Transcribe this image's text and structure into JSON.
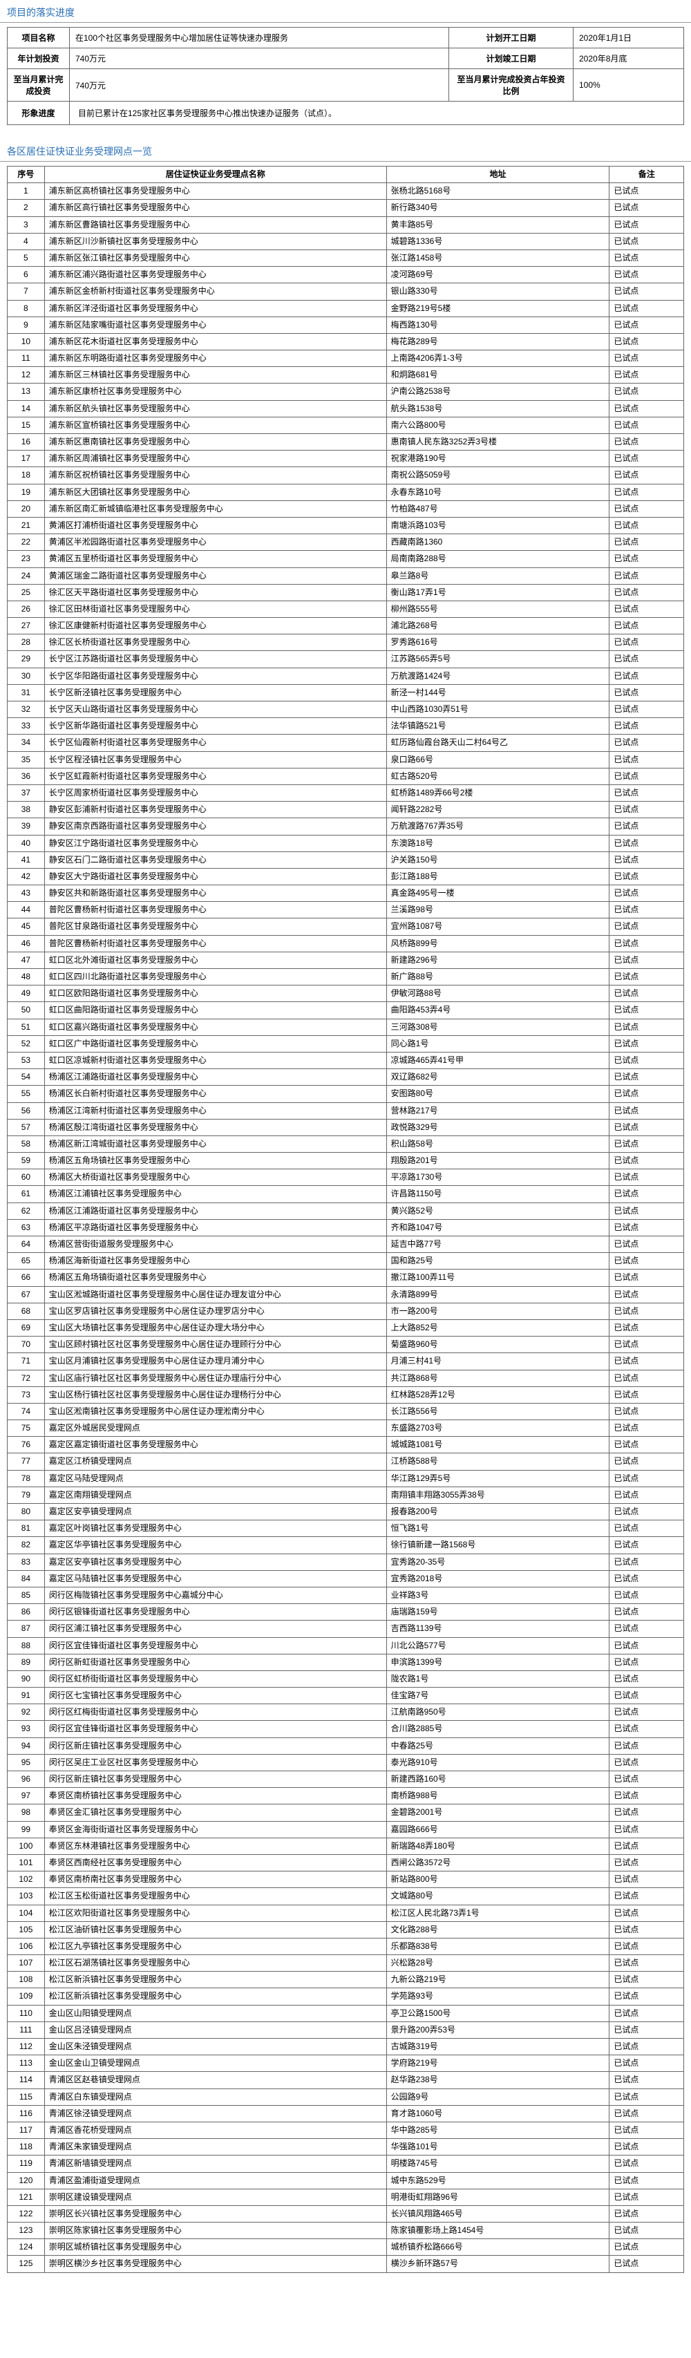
{
  "section1_title": "项目的落实进度",
  "info": {
    "row1_l1": "项目名称",
    "row1_v1": "在100个社区事务受理服务中心增加居住证等快速办理服务",
    "row1_l2": "计划开工日期",
    "row1_v2": "2020年1月1日",
    "row2_l1": "年计划投资",
    "row2_v1": "740万元",
    "row2_l2": "计划竣工日期",
    "row2_v2": "2020年8月底",
    "row3_l1": "至当月累计完成投资",
    "row3_v1": "740万元",
    "row3_l2": "至当月累计完成投资占年投资比例",
    "row3_v2": "100%",
    "row4_l1": "形象进度",
    "row4_v1": "目前已累计在125家社区事务受理服务中心推出快速办证服务（试点）。"
  },
  "section2_title": "各区居住证快证业务受理网点一览",
  "list_header": {
    "seq": "序号",
    "name": "居住证快证业务受理点名称",
    "addr": "地址",
    "rem": "备注"
  },
  "rows": [
    {
      "s": "1",
      "n": "浦东新区高桥镇社区事务受理服务中心",
      "a": "张杨北路5168号",
      "r": "已试点"
    },
    {
      "s": "2",
      "n": "浦东新区高行镇社区事务受理服务中心",
      "a": "新行路340号",
      "r": "已试点"
    },
    {
      "s": "3",
      "n": "浦东新区曹路镇社区事务受理服务中心",
      "a": "黄丰路85号",
      "r": "已试点"
    },
    {
      "s": "4",
      "n": "浦东新区川沙新镇社区事务受理服务中心",
      "a": "城碧路1336号",
      "r": "已试点"
    },
    {
      "s": "5",
      "n": "浦东新区张江镇社区事务受理服务中心",
      "a": "张江路1458号",
      "r": "已试点"
    },
    {
      "s": "6",
      "n": "浦东新区浦兴路街道社区事务受理服务中心",
      "a": "凌河路69号",
      "r": "已试点"
    },
    {
      "s": "7",
      "n": "浦东新区金桥新村街道社区事务受理服务中心",
      "a": "银山路330号",
      "r": "已试点"
    },
    {
      "s": "8",
      "n": "浦东新区洋泾街道社区事务受理服务中心",
      "a": "金野路219号5楼",
      "r": "已试点"
    },
    {
      "s": "9",
      "n": "浦东新区陆家嘴街道社区事务受理服务中心",
      "a": "梅西路130号",
      "r": "已试点"
    },
    {
      "s": "10",
      "n": "浦东新区花木街道社区事务受理服务中心",
      "a": "梅花路289号",
      "r": "已试点"
    },
    {
      "s": "11",
      "n": "浦东新区东明路街道社区事务受理服务中心",
      "a": "上南路4206弄1-3号",
      "r": "已试点"
    },
    {
      "s": "12",
      "n": "浦东新区三林镇社区事务受理服务中心",
      "a": "和炯路681号",
      "r": "已试点"
    },
    {
      "s": "13",
      "n": "浦东新区康桥社区事务受理服务中心",
      "a": "沪南公路2538号",
      "r": "已试点"
    },
    {
      "s": "14",
      "n": "浦东新区航头镇社区事务受理服务中心",
      "a": "航头路1538号",
      "r": "已试点"
    },
    {
      "s": "15",
      "n": "浦东新区宣桥镇社区事务受理服务中心",
      "a": "南六公路800号",
      "r": "已试点"
    },
    {
      "s": "16",
      "n": "浦东新区惠南镇社区事务受理服务中心",
      "a": "惠南镇人民东路3252弄3号楼",
      "r": "已试点"
    },
    {
      "s": "17",
      "n": "浦东新区周浦镇社区事务受理服务中心",
      "a": "祝家港路190号",
      "r": "已试点"
    },
    {
      "s": "18",
      "n": "浦东新区祝桥镇社区事务受理服务中心",
      "a": "南祝公路5059号",
      "r": "已试点"
    },
    {
      "s": "19",
      "n": "浦东新区大团镇社区事务受理服务中心",
      "a": "永春东路10号",
      "r": "已试点"
    },
    {
      "s": "20",
      "n": "浦东新区南汇新城镇临港社区事务受理服务中心",
      "a": "竹柏路487号",
      "r": "已试点"
    },
    {
      "s": "21",
      "n": "黄浦区打浦桥街道社区事务受理服务中心",
      "a": "南塘浜路103号",
      "r": "已试点"
    },
    {
      "s": "22",
      "n": "黄浦区半淞园路街道社区事务受理服务中心",
      "a": "西藏南路1360",
      "r": "已试点"
    },
    {
      "s": "23",
      "n": "黄浦区五里桥街道社区事务受理服务中心",
      "a": "局南南路288号",
      "r": "已试点"
    },
    {
      "s": "24",
      "n": "黄浦区瑞金二路街道社区事务受理服务中心",
      "a": "皋兰路8号",
      "r": "已试点"
    },
    {
      "s": "25",
      "n": "徐汇区天平路街道社区事务受理服务中心",
      "a": "衡山路17弄1号",
      "r": "已试点"
    },
    {
      "s": "26",
      "n": "徐汇区田林街道社区事务受理服务中心",
      "a": "柳州路555号",
      "r": "已试点"
    },
    {
      "s": "27",
      "n": "徐汇区康健新村街道社区事务受理服务中心",
      "a": "浦北路268号",
      "r": "已试点"
    },
    {
      "s": "28",
      "n": "徐汇区长桥街道社区事务受理服务中心",
      "a": "罗秀路616号",
      "r": "已试点"
    },
    {
      "s": "29",
      "n": "长宁区江苏路街道社区事务受理服务中心",
      "a": "江苏路565弄5号",
      "r": "已试点"
    },
    {
      "s": "30",
      "n": "长宁区华阳路街道社区事务受理服务中心",
      "a": "万航渡路1424号",
      "r": "已试点"
    },
    {
      "s": "31",
      "n": "长宁区新泾镇社区事务受理服务中心",
      "a": "新泾一村144号",
      "r": "已试点"
    },
    {
      "s": "32",
      "n": "长宁区天山路街道社区事务受理服务中心",
      "a": "中山西路1030弄51号",
      "r": "已试点"
    },
    {
      "s": "33",
      "n": "长宁区新华路街道社区事务受理服务中心",
      "a": "法华镇路521号",
      "r": "已试点"
    },
    {
      "s": "34",
      "n": "长宁区仙霞新村街道社区事务受理服务中心",
      "a": "虹历路仙霞台路天山二村64号乙",
      "r": "已试点"
    },
    {
      "s": "35",
      "n": "长宁区程泾镇社区事务受理服务中心",
      "a": "泉口路66号",
      "r": "已试点"
    },
    {
      "s": "36",
      "n": "长宁区虹霞新村街道社区事务受理服务中心",
      "a": "虹古路520号",
      "r": "已试点"
    },
    {
      "s": "37",
      "n": "长宁区周家桥街道社区事务受理服务中心",
      "a": "虹桥路1489弄66号2楼",
      "r": "已试点"
    },
    {
      "s": "38",
      "n": "静安区彭浦新村街道社区事务受理服务中心",
      "a": "闻轩路2282号",
      "r": "已试点"
    },
    {
      "s": "39",
      "n": "静安区南京西路街道社区事务受理服务中心",
      "a": "万航渡路767弄35号",
      "r": "已试点"
    },
    {
      "s": "40",
      "n": "静安区江宁路街道社区事务受理服务中心",
      "a": "东澳路18号",
      "r": "已试点"
    },
    {
      "s": "41",
      "n": "静安区石门二路街道社区事务受理服务中心",
      "a": "沪关路150号",
      "r": "已试点"
    },
    {
      "s": "42",
      "n": "静安区大宁路街道社区事务受理服务中心",
      "a": "彭江路188号",
      "r": "已试点"
    },
    {
      "s": "43",
      "n": "静安区共和新路街道社区事务受理服务中心",
      "a": "真金路495号一楼",
      "r": "已试点"
    },
    {
      "s": "44",
      "n": "普陀区曹杨新村街道社区事务受理服务中心",
      "a": "兰溪路98号",
      "r": "已试点"
    },
    {
      "s": "45",
      "n": "普陀区甘泉路街道社区事务受理服务中心",
      "a": "宜州路1087号",
      "r": "已试点"
    },
    {
      "s": "46",
      "n": "普陀区曹杨新村街道社区事务受理服务中心",
      "a": "风桥路899号",
      "r": "已试点"
    },
    {
      "s": "47",
      "n": "虹口区北外滩街道社区事务受理服务中心",
      "a": "新建路296号",
      "r": "已试点"
    },
    {
      "s": "48",
      "n": "虹口区四川北路街道社区事务受理服务中心",
      "a": "新广路88号",
      "r": "已试点"
    },
    {
      "s": "49",
      "n": "虹口区欧阳路街道社区事务受理服务中心",
      "a": "伊敏河路88号",
      "r": "已试点"
    },
    {
      "s": "50",
      "n": "虹口区曲阳路街道社区事务受理服务中心",
      "a": "曲阳路453弄4号",
      "r": "已试点"
    },
    {
      "s": "51",
      "n": "虹口区嘉兴路街道社区事务受理服务中心",
      "a": "三河路308号",
      "r": "已试点"
    },
    {
      "s": "52",
      "n": "虹口区广中路街道社区事务受理服务中心",
      "a": "同心路1号",
      "r": "已试点"
    },
    {
      "s": "53",
      "n": "虹口区凉城新村街道社区事务受理服务中心",
      "a": "凉城路465弄41号甲",
      "r": "已试点"
    },
    {
      "s": "54",
      "n": "杨浦区江浦路街道社区事务受理服务中心",
      "a": "双辽路682号",
      "r": "已试点"
    },
    {
      "s": "55",
      "n": "杨浦区长白新村街道社区事务受理服务中心",
      "a": "安图路80号",
      "r": "已试点"
    },
    {
      "s": "56",
      "n": "杨浦区江湾新村街道社区事务受理服务中心",
      "a": "营林路217号",
      "r": "已试点"
    },
    {
      "s": "57",
      "n": "杨浦区殷江湾街道社区事务受理服务中心",
      "a": "政悦路329号",
      "r": "已试点"
    },
    {
      "s": "58",
      "n": "杨浦区新江湾城街道社区事务受理服务中心",
      "a": "积山路58号",
      "r": "已试点"
    },
    {
      "s": "59",
      "n": "杨浦区五角场镇社区事务受理服务中心",
      "a": "翔殷路201号",
      "r": "已试点"
    },
    {
      "s": "60",
      "n": "杨浦区大桥街道社区事务受理服务中心",
      "a": "平凉路1730号",
      "r": "已试点"
    },
    {
      "s": "61",
      "n": "杨浦区江浦镇社区事务受理服务中心",
      "a": "许昌路1150号",
      "r": "已试点"
    },
    {
      "s": "62",
      "n": "杨浦区江浦路街道社区事务受理服务中心",
      "a": "黄兴路52号",
      "r": "已试点"
    },
    {
      "s": "63",
      "n": "杨浦区平凉路街道社区事务受理服务中心",
      "a": "齐和路1047号",
      "r": "已试点"
    },
    {
      "s": "64",
      "n": "杨浦区营街街道服务受理服务中心",
      "a": "延吉中路77号",
      "r": "已试点"
    },
    {
      "s": "65",
      "n": "杨浦区海新街道社区事务受理服务中心",
      "a": "国和路25号",
      "r": "已试点"
    },
    {
      "s": "66",
      "n": "杨浦区五角场镇街道社区事务受理服务中心",
      "a": "撤江路100弄11号",
      "r": "已试点"
    },
    {
      "s": "67",
      "n": "宝山区淞城路街道社区事务受理服务中心居住证办理友谊分中心",
      "a": "永清路899号",
      "r": "已试点"
    },
    {
      "s": "68",
      "n": "宝山区罗店镇社区事务受理服务中心居住证办理罗店分中心",
      "a": "市一路200号",
      "r": "已试点"
    },
    {
      "s": "69",
      "n": "宝山区大场镇社区事务受理服务中心居住证办理大场分中心",
      "a": "上大路852号",
      "r": "已试点"
    },
    {
      "s": "70",
      "n": "宝山区顾村镇社区社区事务受理服务中心居住证办理顾行分中心",
      "a": "菊盛路960号",
      "r": "已试点"
    },
    {
      "s": "71",
      "n": "宝山区月浦镇社区事务受理服务中心居住证办理月浦分中心",
      "a": "月浦三村41号",
      "r": "已试点"
    },
    {
      "s": "72",
      "n": "宝山区庙行镇社区社区事务受理服务中心居住证办理庙行分中心",
      "a": "共江路868号",
      "r": "已试点"
    },
    {
      "s": "73",
      "n": "宝山区杨行镇社区社区事务受理服务中心居住证办理杨行分中心",
      "a": "红林路528弄12号",
      "r": "已试点"
    },
    {
      "s": "74",
      "n": "宝山区淞南镇社区事务受理服务中心居住证办理淞南分中心",
      "a": "长江路556号",
      "r": "已试点"
    },
    {
      "s": "75",
      "n": "嘉定区外城居民受理网点",
      "a": "东盛路2703号",
      "r": "已试点"
    },
    {
      "s": "76",
      "n": "嘉定区嘉定镇街道社区事务受理服务中心",
      "a": "城城路1081号",
      "r": "已试点"
    },
    {
      "s": "77",
      "n": "嘉定区江桥镇受理网点",
      "a": "江桥路588号",
      "r": "已试点"
    },
    {
      "s": "78",
      "n": "嘉定区马陆受理网点",
      "a": "华江路129弄5号",
      "r": "已试点"
    },
    {
      "s": "79",
      "n": "嘉定区南翔镇受理网点",
      "a": "南翔镇丰翔路3055弄38号",
      "r": "已试点"
    },
    {
      "s": "80",
      "n": "嘉定区安亭镇受理网点",
      "a": "报春路200号",
      "r": "已试点"
    },
    {
      "s": "81",
      "n": "嘉定区叶岗镇社区事务受理服务中心",
      "a": "恒飞路1号",
      "r": "已试点"
    },
    {
      "s": "82",
      "n": "嘉定区华亭镇社区事务受理服务中心",
      "a": "徐行镇新建一路1568号",
      "r": "已试点"
    },
    {
      "s": "83",
      "n": "嘉定区安亭镇社区事务受理服务中心",
      "a": "宜秀路20-35号",
      "r": "已试点"
    },
    {
      "s": "84",
      "n": "嘉定区马陆镇社区事务受理服务中心",
      "a": "宜秀路2018号",
      "r": "已试点"
    },
    {
      "s": "85",
      "n": "闵行区梅陇镇社区事务受理服务中心嘉城分中心",
      "a": "业祥路3号",
      "r": "已试点"
    },
    {
      "s": "86",
      "n": "闵行区银锋街道社区事务受理服务中心",
      "a": "庙瑞路159号",
      "r": "已试点"
    },
    {
      "s": "87",
      "n": "闵行区浦江镇社区事务受理服务中心",
      "a": "吉西路1139号",
      "r": "已试点"
    },
    {
      "s": "88",
      "n": "闵行区宜佳锋街道社区事务受理服务中心",
      "a": "川北公路577号",
      "r": "已试点"
    },
    {
      "s": "89",
      "n": "闵行区新虹街道社区事务受理服务中心",
      "a": "申滨路1399号",
      "r": "已试点"
    },
    {
      "s": "90",
      "n": "闵行区虹桥街街道社区事务受理服务中心",
      "a": "陇农路1号",
      "r": "已试点"
    },
    {
      "s": "91",
      "n": "闵行区七宝镇社区事务受理服务中心",
      "a": "佳宝路7号",
      "r": "已试点"
    },
    {
      "s": "92",
      "n": "闵行区红梅街街道社区事务受理服务中心",
      "a": "江航南路950号",
      "r": "已试点"
    },
    {
      "s": "93",
      "n": "闵行区宜佳锋街道社区事务受理服务中心",
      "a": "合川路2885号",
      "r": "已试点"
    },
    {
      "s": "94",
      "n": "闵行区新庄镇社区事务受理服务中心",
      "a": "中春路25号",
      "r": "已试点"
    },
    {
      "s": "95",
      "n": "闵行区吴庄工业区社区事务受理服务中心",
      "a": "泰光路910号",
      "r": "已试点"
    },
    {
      "s": "96",
      "n": "闵行区新庄镇社区事务受理服务中心",
      "a": "新建西路160号",
      "r": "已试点"
    },
    {
      "s": "97",
      "n": "奉贤区南桥镇社区事务受理服务中心",
      "a": "南桥路988号",
      "r": "已试点"
    },
    {
      "s": "98",
      "n": "奉贤区金汇镇社区事务受理服务中心",
      "a": "金碧路2001号",
      "r": "已试点"
    },
    {
      "s": "99",
      "n": "奉贤区金海街街道社区事务受理服务中心",
      "a": "嘉园路666号",
      "r": "已试点"
    },
    {
      "s": "100",
      "n": "奉贤区东林港镇社区事务受理服务中心",
      "a": "新瑞路48弄180号",
      "r": "已试点"
    },
    {
      "s": "101",
      "n": "奉贤区西南经社区事务受理服务中心",
      "a": "西闸公路3572号",
      "r": "已试点"
    },
    {
      "s": "102",
      "n": "奉贤区南桥南社区事务受理服务中心",
      "a": "新站路800号",
      "r": "已试点"
    },
    {
      "s": "103",
      "n": "松江区玉松街道社区事务受理服务中心",
      "a": "文城路80号",
      "r": "已试点"
    },
    {
      "s": "104",
      "n": "松江区欢阳街道社区事务受理服务中心",
      "a": "松江区人民北路73弄1号",
      "r": "已试点"
    },
    {
      "s": "105",
      "n": "松江区油斫镇社区事务受理服务中心",
      "a": "文化路288号",
      "r": "已试点"
    },
    {
      "s": "106",
      "n": "松江区九亭镇社区事务受理服务中心",
      "a": "乐都路838号",
      "r": "已试点"
    },
    {
      "s": "107",
      "n": "松江区石湖荡镇社区事务受理服务中心",
      "a": "兴松路28号",
      "r": "已试点"
    },
    {
      "s": "108",
      "n": "松江区新浜镇社区事务受理服务中心",
      "a": "九新公路219号",
      "r": "已试点"
    },
    {
      "s": "109",
      "n": "松江区新浜镇社区事务受理服务中心",
      "a": "学苑路93号",
      "r": "已试点"
    },
    {
      "s": "110",
      "n": "金山区山阳镇受理网点",
      "a": "亭卫公路1500号",
      "r": "已试点"
    },
    {
      "s": "111",
      "n": "金山区吕泾镇受理网点",
      "a": "景升路200弄53号",
      "r": "已试点"
    },
    {
      "s": "112",
      "n": "金山区朱泾镇受理网点",
      "a": "古城路319号",
      "r": "已试点"
    },
    {
      "s": "113",
      "n": "金山区金山卫镇受理网点",
      "a": "学府路219号",
      "r": "已试点"
    },
    {
      "s": "114",
      "n": "青浦区区赵巷镇受理网点",
      "a": "赵华路238号",
      "r": "已试点"
    },
    {
      "s": "115",
      "n": "青浦区白东镇受理网点",
      "a": "公园路9号",
      "r": "已试点"
    },
    {
      "s": "116",
      "n": "青浦区徐泾镇受理网点",
      "a": "育才路1060号",
      "r": "已试点"
    },
    {
      "s": "117",
      "n": "青浦区香花桥受理网点",
      "a": "华中路285号",
      "r": "已试点"
    },
    {
      "s": "118",
      "n": "青浦区朱家镇受理网点",
      "a": "华强路101号",
      "r": "已试点"
    },
    {
      "s": "119",
      "n": "青浦区新墙镇受理网点",
      "a": "明楼路745号",
      "r": "已试点"
    },
    {
      "s": "120",
      "n": "青浦区盈浦街道受理网点",
      "a": "城中东路529号",
      "r": "已试点"
    },
    {
      "s": "121",
      "n": "崇明区建设镇受理网点",
      "a": "明港街虹翔路96号",
      "r": "已试点"
    },
    {
      "s": "122",
      "n": "崇明区长兴镇社区事务受理服务中心",
      "a": "长兴镇风翔路465号",
      "r": "已试点"
    },
    {
      "s": "123",
      "n": "崇明区陈家镇社区事务受理服务中心",
      "a": "陈家镇覆影场上路1454号",
      "r": "已试点"
    },
    {
      "s": "124",
      "n": "崇明区城桥镇社区事务受理服务中心",
      "a": "城桥镇乔松路666号",
      "r": "已试点"
    },
    {
      "s": "125",
      "n": "崇明区横沙乡社区事务受理服务中心",
      "a": "横沙乡新环路57号",
      "r": "已试点"
    }
  ]
}
